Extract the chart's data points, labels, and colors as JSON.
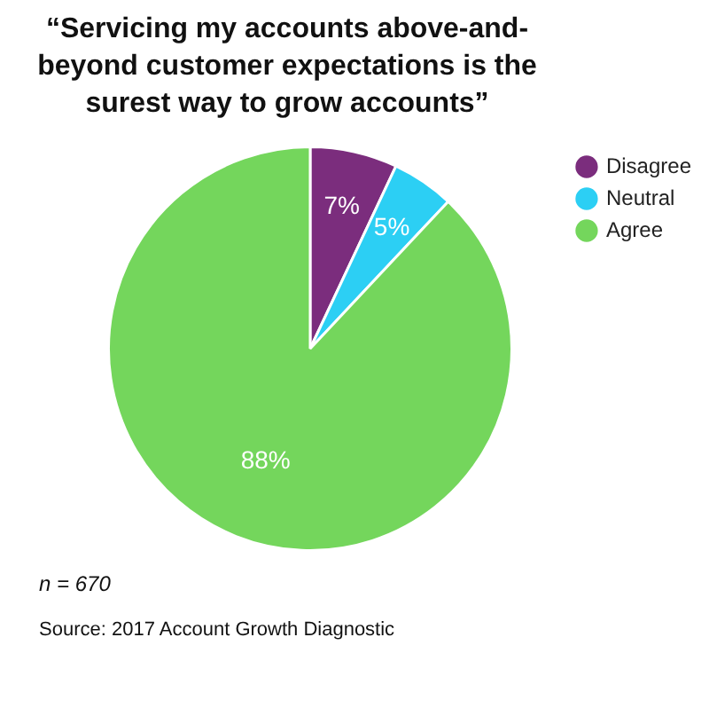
{
  "chart_data": {
    "type": "pie",
    "title": "“Servicing my accounts above-and-beyond customer expectations is the surest way to grow accounts”",
    "categories": [
      "Disagree",
      "Neutral",
      "Agree"
    ],
    "values": [
      7,
      5,
      88
    ],
    "colors": [
      "#7b2d7d",
      "#2ccff4",
      "#74d65c"
    ],
    "value_labels": [
      "7%",
      "5%",
      "88%"
    ],
    "legend": "top right",
    "annotations": [
      "n = 670",
      "Source: 2017 Account Growth Diagnostic"
    ]
  }
}
